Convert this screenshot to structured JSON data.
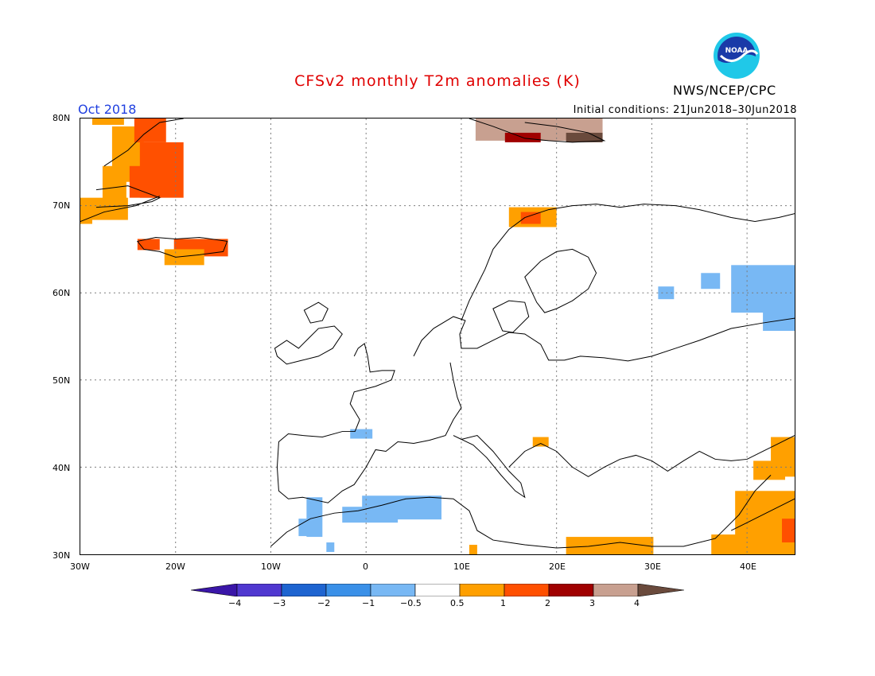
{
  "header": {
    "title": "CFSv2 monthly T2m anomalies (K)",
    "valid_month": "Oct 2018",
    "initial_conditions": "Initial conditions: 21Jun2018–30Jun2018",
    "agency": "NWS/NCEP/CPC",
    "logo_text": "NOAA"
  },
  "colors": {
    "title": "#e00000",
    "valid_month": "#2040e0",
    "grid": "#7a7a7a",
    "coast": "#000000",
    "legend": [
      "#3a16a8",
      "#5038d0",
      "#1e64d0",
      "#3a90e8",
      "#78b8f4",
      "#ffffff",
      "#ffa000",
      "#ff5000",
      "#a00000",
      "#c8a090",
      "#6a4a3c"
    ]
  },
  "map": {
    "lat_labels": [
      "80N",
      "70N",
      "60N",
      "50N",
      "40N",
      "30N"
    ],
    "lon_labels": [
      "30W",
      "20W",
      "10W",
      "0",
      "10E",
      "20E",
      "30E",
      "40E"
    ]
  },
  "legend": {
    "labels": [
      "−4",
      "−3",
      "−2",
      "−1",
      "−0.5",
      "0.5",
      "1",
      "2",
      "3",
      "4"
    ]
  }
}
